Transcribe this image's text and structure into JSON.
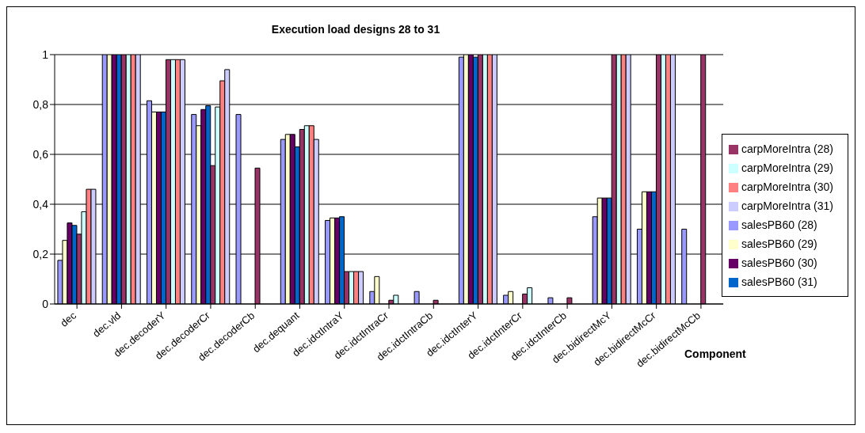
{
  "chart_data": {
    "type": "bar",
    "title": "Execution load designs 28 to 31",
    "xlabel": "Component",
    "categories": [
      "dec",
      "dec.vld",
      "dec.decoderY",
      "dec.decoderCr",
      "dec.decoderCb",
      "dec.dequant",
      "dec.idctIntraY",
      "dec.idctIntraCr",
      "dec.idctIntraCb",
      "dec.idctInterY",
      "dec.idctInterCr",
      "dec.idctInterCb",
      "dec.bidirectMcY",
      "dec.bidirectMcCr",
      "dec.bidirectMcCb"
    ],
    "series": [
      {
        "name": "salesPB60 (28)",
        "color": "#9999ff",
        "values": [
          0.175,
          1,
          0.815,
          0.76,
          0.76,
          0.66,
          0.335,
          0.05,
          0.05,
          0.99,
          0.035,
          0.025,
          0.35,
          0.3,
          0.3
        ]
      },
      {
        "name": "salesPB60 (29)",
        "color": "#ffffcc",
        "values": [
          0.255,
          1,
          0.77,
          0.715,
          0,
          0.68,
          0.345,
          0.11,
          0,
          1,
          0.05,
          0,
          0.425,
          0.45,
          0
        ]
      },
      {
        "name": "salesPB60 (30)",
        "color": "#660066",
        "values": [
          0.325,
          1,
          0.77,
          0.78,
          0,
          0.68,
          0.345,
          0,
          0,
          1,
          0,
          0,
          0.425,
          0.45,
          0
        ]
      },
      {
        "name": "salesPB60 (31)",
        "color": "#0066cc",
        "values": [
          0.315,
          1,
          0.77,
          0.795,
          0,
          0.63,
          0.35,
          0,
          0,
          0.99,
          0,
          0,
          0.425,
          0.45,
          0
        ]
      },
      {
        "name": "carpMoreIntra (28)",
        "color": "#993366",
        "values": [
          0.28,
          1,
          0.98,
          0.555,
          0.545,
          0.7,
          0.13,
          0.015,
          0.015,
          1,
          0.04,
          0.025,
          1,
          1,
          1
        ]
      },
      {
        "name": "carpMoreIntra (29)",
        "color": "#ccffff",
        "values": [
          0.37,
          1,
          0.98,
          0.79,
          0,
          0.715,
          0.13,
          0.035,
          0,
          1,
          0.065,
          0,
          1,
          1,
          null
        ]
      },
      {
        "name": "carpMoreIntra (30)",
        "color": "#ff8080",
        "values": [
          0.46,
          1,
          0.98,
          0.895,
          0,
          0.715,
          0.13,
          0,
          0,
          1,
          0,
          0,
          1,
          1,
          null
        ]
      },
      {
        "name": "carpMoreIntra (31)",
        "color": "#ccccff",
        "values": [
          0.46,
          1,
          0.98,
          0.94,
          0,
          0.66,
          0.13,
          0,
          0,
          1,
          0,
          0,
          1,
          1,
          null
        ]
      }
    ],
    "ylim": [
      0,
      1
    ],
    "yticks": [
      0,
      {
        "value": 0.2,
        "label": "0,2"
      },
      {
        "value": 0.4,
        "label": "0,4"
      },
      {
        "value": 0.6,
        "label": "0,6"
      },
      {
        "value": 0.8,
        "label": "0,8"
      },
      1
    ],
    "grid": "y",
    "legend": "right"
  }
}
